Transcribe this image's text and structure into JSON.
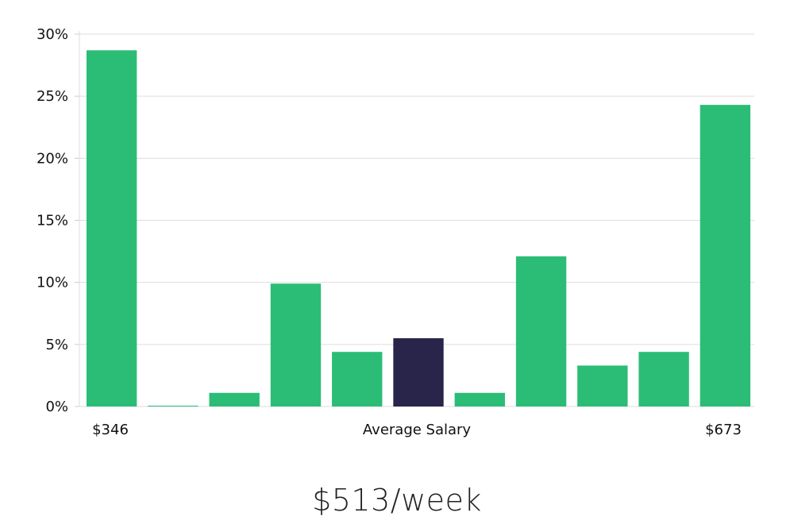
{
  "chart_data": {
    "type": "bar",
    "values": [
      28.7,
      0.05,
      1.1,
      9.9,
      4.4,
      5.5,
      1.1,
      12.1,
      3.3,
      4.4,
      24.3
    ],
    "highlight_index": 5,
    "ylim": [
      0,
      30
    ],
    "y_ticks": [
      0,
      5,
      10,
      15,
      20,
      25,
      30
    ],
    "y_tick_labels": [
      "0%",
      "5%",
      "10%",
      "15%",
      "20%",
      "25%",
      "30%"
    ],
    "grid": true,
    "x_labels": {
      "left": "$346",
      "center": "Average Salary",
      "right": "$673"
    },
    "colors": {
      "bar": "#2bbd76",
      "highlight": "#28244a",
      "grid": "#dddddd",
      "axis": "#cccccc"
    }
  },
  "summary": "$513/week"
}
